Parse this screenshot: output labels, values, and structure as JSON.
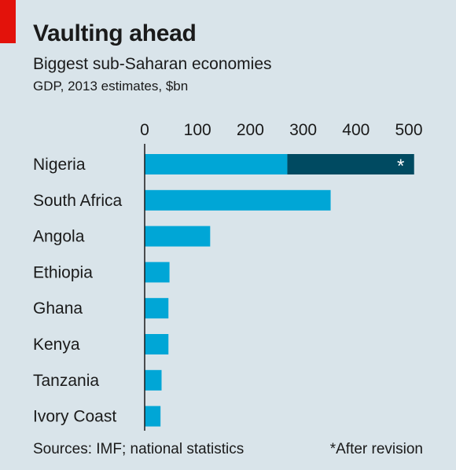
{
  "header": {
    "title": "Vaulting ahead",
    "subtitle": "Biggest sub-Saharan economies",
    "units": "GDP, 2013 estimates, $bn"
  },
  "footer": {
    "source": "Sources: IMF; national statistics",
    "note": "*After revision"
  },
  "colors": {
    "accent": "#e3120b",
    "bar": "#00a6d6",
    "revision": "#004a61",
    "background": "#d9e4ea"
  },
  "chart_data": {
    "type": "bar",
    "orientation": "horizontal",
    "stacked": true,
    "categories": [
      "Nigeria",
      "South Africa",
      "Angola",
      "Ethiopia",
      "Ghana",
      "Kenya",
      "Tanzania",
      "Ivory Coast"
    ],
    "series": [
      {
        "values": [
          270,
          352,
          124,
          47,
          45,
          45,
          32,
          30
        ]
      },
      {
        "values": [
          240,
          0,
          0,
          0,
          0,
          0,
          0,
          0
        ]
      }
    ],
    "bar_marker": {
      "category": "Nigeria",
      "text": "*"
    },
    "xlim": [
      0,
      500
    ],
    "xticks": [
      0,
      100,
      200,
      300,
      400,
      500
    ],
    "axis_position": "top",
    "grid": false,
    "legend": "none"
  }
}
